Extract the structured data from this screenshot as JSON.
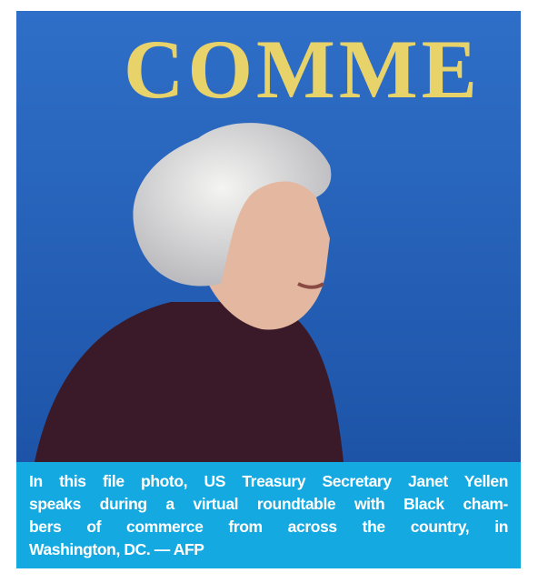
{
  "photo": {
    "background_text": "COMME"
  },
  "caption": {
    "lines": [
      "In this file photo, US Treasury Secretary Janet Yellen",
      "speaks during a virtual roundtable with Black cham-",
      "bers of commerce from across the country, in",
      "Washington, DC. — AFP"
    ]
  }
}
